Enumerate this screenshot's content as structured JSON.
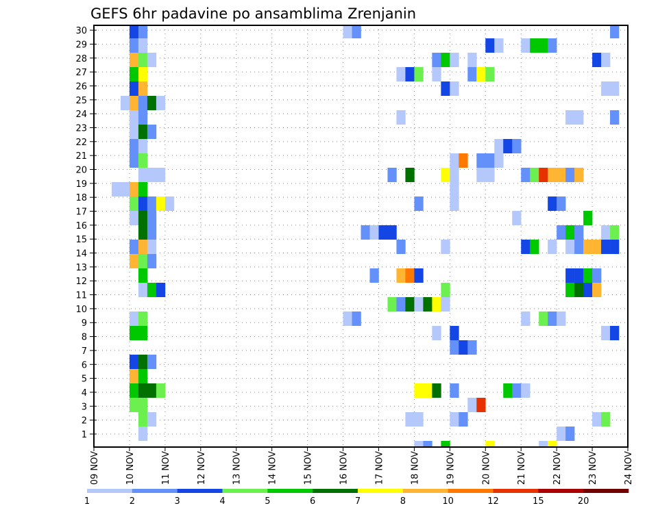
{
  "chart_data": {
    "type": "heatmap",
    "title": "GEFS 6hr padavine po ansamblima Zrenjanin",
    "xlabel": "",
    "ylabel": "",
    "x_ticks": [
      "09 NOV",
      "10 NOV",
      "11 NOV",
      "12 NOV",
      "13 NOV",
      "14 NOV",
      "15 NOV",
      "16 NOV",
      "17 NOV",
      "18 NOV",
      "19 NOV",
      "20 NOV",
      "21 NOV",
      "22 NOV",
      "23 NOV",
      "24 NOV"
    ],
    "y_ticks": [
      1,
      2,
      3,
      4,
      5,
      6,
      7,
      8,
      9,
      10,
      11,
      12,
      13,
      14,
      15,
      16,
      17,
      18,
      19,
      20,
      21,
      22,
      23,
      24,
      25,
      26,
      27,
      28,
      29,
      30
    ],
    "time_step_hours": 6,
    "grid": true,
    "colorbar": {
      "placement": "bottom",
      "levels": [
        1,
        2,
        3,
        4,
        5,
        6,
        7,
        8,
        10,
        12,
        15,
        20
      ],
      "colors": [
        "#b4c8fc",
        "#6490fa",
        "#1446e6",
        "#6cf050",
        "#00c800",
        "#007000",
        "#ffff00",
        "#ffb432",
        "#ff7800",
        "#e63200",
        "#aa0000",
        "#700000"
      ]
    },
    "cells_format": "[member_row, six_hour_step_from_09_NOV, lower_bin_value]",
    "cells": [
      [
        29,
        4,
        3
      ],
      [
        29,
        5,
        2
      ],
      [
        28,
        4,
        2
      ],
      [
        28,
        5,
        1
      ],
      [
        27,
        4,
        8
      ],
      [
        27,
        5,
        4
      ],
      [
        27,
        6,
        1
      ],
      [
        26,
        4,
        5
      ],
      [
        26,
        5,
        7
      ],
      [
        25,
        4,
        3
      ],
      [
        25,
        5,
        8
      ],
      [
        24,
        3,
        1
      ],
      [
        24,
        4,
        8
      ],
      [
        24,
        5,
        2
      ],
      [
        24,
        6,
        6
      ],
      [
        24,
        7,
        1
      ],
      [
        23,
        4,
        1
      ],
      [
        23,
        5,
        2
      ],
      [
        22,
        4,
        1
      ],
      [
        22,
        5,
        6
      ],
      [
        22,
        6,
        2
      ],
      [
        21,
        4,
        2
      ],
      [
        21,
        5,
        1
      ],
      [
        20,
        4,
        2
      ],
      [
        20,
        5,
        4
      ],
      [
        19,
        5,
        1
      ],
      [
        19,
        6,
        1
      ],
      [
        19,
        7,
        1
      ],
      [
        18,
        2,
        1
      ],
      [
        18,
        3,
        1
      ],
      [
        18,
        4,
        8
      ],
      [
        18,
        5,
        5
      ],
      [
        17,
        4,
        4
      ],
      [
        17,
        5,
        3
      ],
      [
        17,
        6,
        2
      ],
      [
        17,
        7,
        7
      ],
      [
        17,
        8,
        1
      ],
      [
        16,
        4,
        1
      ],
      [
        16,
        5,
        6
      ],
      [
        16,
        6,
        2
      ],
      [
        15,
        5,
        6
      ],
      [
        15,
        6,
        2
      ],
      [
        14,
        4,
        2
      ],
      [
        14,
        5,
        8
      ],
      [
        14,
        6,
        1
      ],
      [
        13,
        4,
        8
      ],
      [
        13,
        5,
        4
      ],
      [
        13,
        6,
        2
      ],
      [
        12,
        5,
        5
      ],
      [
        11,
        5,
        1
      ],
      [
        11,
        6,
        5
      ],
      [
        11,
        7,
        3
      ],
      [
        9,
        4,
        1
      ],
      [
        9,
        5,
        4
      ],
      [
        8,
        4,
        5
      ],
      [
        8,
        5,
        5
      ],
      [
        6,
        4,
        3
      ],
      [
        6,
        5,
        6
      ],
      [
        6,
        6,
        2
      ],
      [
        5,
        4,
        8
      ],
      [
        5,
        5,
        5
      ],
      [
        4,
        4,
        5
      ],
      [
        4,
        5,
        6
      ],
      [
        4,
        6,
        6
      ],
      [
        4,
        7,
        4
      ],
      [
        3,
        4,
        4
      ],
      [
        3,
        5,
        4
      ],
      [
        2,
        5,
        4
      ],
      [
        2,
        6,
        1
      ],
      [
        1,
        5,
        1
      ],
      [
        29,
        28,
        1
      ],
      [
        29,
        29,
        2
      ],
      [
        29,
        58,
        2
      ],
      [
        28,
        44,
        3
      ],
      [
        28,
        45,
        1
      ],
      [
        28,
        48,
        1
      ],
      [
        28,
        49,
        5
      ],
      [
        28,
        50,
        5
      ],
      [
        28,
        51,
        2
      ],
      [
        27,
        38,
        2
      ],
      [
        27,
        39,
        5
      ],
      [
        27,
        40,
        1
      ],
      [
        27,
        42,
        1
      ],
      [
        27,
        56,
        3
      ],
      [
        27,
        57,
        1
      ],
      [
        26,
        34,
        1
      ],
      [
        26,
        35,
        3
      ],
      [
        26,
        36,
        4
      ],
      [
        26,
        38,
        1
      ],
      [
        26,
        42,
        2
      ],
      [
        26,
        43,
        7
      ],
      [
        26,
        44,
        4
      ],
      [
        25,
        39,
        3
      ],
      [
        25,
        40,
        1
      ],
      [
        25,
        57,
        1
      ],
      [
        25,
        58,
        1
      ],
      [
        23,
        34,
        1
      ],
      [
        23,
        53,
        1
      ],
      [
        23,
        54,
        1
      ],
      [
        23,
        58,
        2
      ],
      [
        21,
        45,
        1
      ],
      [
        21,
        46,
        3
      ],
      [
        21,
        47,
        2
      ],
      [
        20,
        40,
        1
      ],
      [
        20,
        41,
        10
      ],
      [
        20,
        43,
        2
      ],
      [
        20,
        44,
        2
      ],
      [
        20,
        45,
        1
      ],
      [
        19,
        33,
        2
      ],
      [
        19,
        35,
        6
      ],
      [
        19,
        39,
        7
      ],
      [
        19,
        40,
        1
      ],
      [
        19,
        43,
        1
      ],
      [
        19,
        44,
        1
      ],
      [
        19,
        48,
        2
      ],
      [
        19,
        49,
        4
      ],
      [
        19,
        50,
        12
      ],
      [
        19,
        51,
        8
      ],
      [
        19,
        52,
        8
      ],
      [
        19,
        53,
        2
      ],
      [
        19,
        54,
        8
      ],
      [
        18,
        40,
        1
      ],
      [
        17,
        36,
        2
      ],
      [
        17,
        40,
        1
      ],
      [
        17,
        51,
        3
      ],
      [
        17,
        52,
        2
      ],
      [
        16,
        47,
        1
      ],
      [
        16,
        55,
        5
      ],
      [
        15,
        30,
        2
      ],
      [
        15,
        31,
        1
      ],
      [
        15,
        32,
        3
      ],
      [
        15,
        33,
        3
      ],
      [
        15,
        52,
        2
      ],
      [
        15,
        53,
        5
      ],
      [
        15,
        54,
        2
      ],
      [
        15,
        57,
        1
      ],
      [
        15,
        58,
        4
      ],
      [
        14,
        34,
        2
      ],
      [
        14,
        39,
        1
      ],
      [
        14,
        48,
        3
      ],
      [
        14,
        49,
        5
      ],
      [
        14,
        51,
        1
      ],
      [
        14,
        53,
        1
      ],
      [
        14,
        54,
        2
      ],
      [
        14,
        55,
        8
      ],
      [
        14,
        56,
        8
      ],
      [
        14,
        57,
        3
      ],
      [
        14,
        58,
        3
      ],
      [
        12,
        31,
        2
      ],
      [
        12,
        34,
        8
      ],
      [
        12,
        35,
        10
      ],
      [
        12,
        36,
        3
      ],
      [
        12,
        53,
        3
      ],
      [
        12,
        54,
        3
      ],
      [
        12,
        55,
        5
      ],
      [
        12,
        56,
        2
      ],
      [
        11,
        39,
        4
      ],
      [
        11,
        53,
        5
      ],
      [
        11,
        54,
        6
      ],
      [
        11,
        55,
        3
      ],
      [
        11,
        56,
        8
      ],
      [
        10,
        33,
        4
      ],
      [
        10,
        34,
        2
      ],
      [
        10,
        35,
        6
      ],
      [
        10,
        36,
        1
      ],
      [
        10,
        37,
        6
      ],
      [
        10,
        38,
        7
      ],
      [
        10,
        39,
        1
      ],
      [
        9,
        28,
        1
      ],
      [
        9,
        29,
        2
      ],
      [
        9,
        48,
        1
      ],
      [
        9,
        50,
        4
      ],
      [
        9,
        51,
        2
      ],
      [
        9,
        52,
        1
      ],
      [
        8,
        38,
        1
      ],
      [
        8,
        40,
        3
      ],
      [
        8,
        57,
        1
      ],
      [
        8,
        58,
        3
      ],
      [
        7,
        40,
        2
      ],
      [
        7,
        41,
        3
      ],
      [
        7,
        42,
        2
      ],
      [
        4,
        36,
        7
      ],
      [
        4,
        37,
        7
      ],
      [
        4,
        38,
        6
      ],
      [
        4,
        40,
        2
      ],
      [
        4,
        46,
        5
      ],
      [
        4,
        47,
        2
      ],
      [
        4,
        48,
        1
      ],
      [
        3,
        42,
        1
      ],
      [
        3,
        43,
        12
      ],
      [
        2,
        35,
        1
      ],
      [
        2,
        36,
        1
      ],
      [
        2,
        40,
        1
      ],
      [
        2,
        41,
        2
      ],
      [
        2,
        56,
        1
      ],
      [
        2,
        57,
        4
      ],
      [
        1,
        52,
        1
      ],
      [
        1,
        53,
        2
      ],
      [
        0,
        36,
        1
      ],
      [
        0,
        37,
        2
      ],
      [
        0,
        39,
        5
      ],
      [
        0,
        44,
        7
      ],
      [
        0,
        50,
        1
      ],
      [
        0,
        51,
        7
      ]
    ]
  }
}
